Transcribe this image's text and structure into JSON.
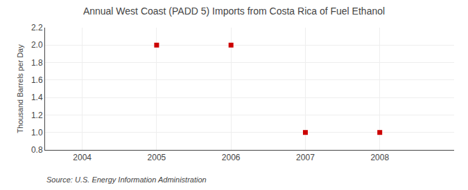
{
  "chart_data": {
    "type": "scatter",
    "title": "Annual West Coast (PADD 5) Imports from Costa Rica of Fuel Ethanol",
    "ylabel": "Thousand Barrels per Day",
    "annotations": [
      "Source: U.S. Energy Information Administration"
    ],
    "x": [
      2005,
      2006,
      2007,
      2008
    ],
    "values": [
      2.0,
      2.0,
      1.0,
      1.0
    ],
    "color": "#cc0000",
    "marker": "square",
    "xlim": [
      2003.5,
      2009.0
    ],
    "ylim": [
      0.8,
      2.2
    ],
    "xticks": [
      2004,
      2005,
      2006,
      2007,
      2008
    ],
    "yticks": [
      0.8,
      {
        "value": 1.0,
        "label": "1.0"
      },
      1.2,
      1.4,
      1.6,
      1.8,
      {
        "value": 2.0,
        "label": "2.0"
      },
      2.2
    ],
    "grid": true
  }
}
